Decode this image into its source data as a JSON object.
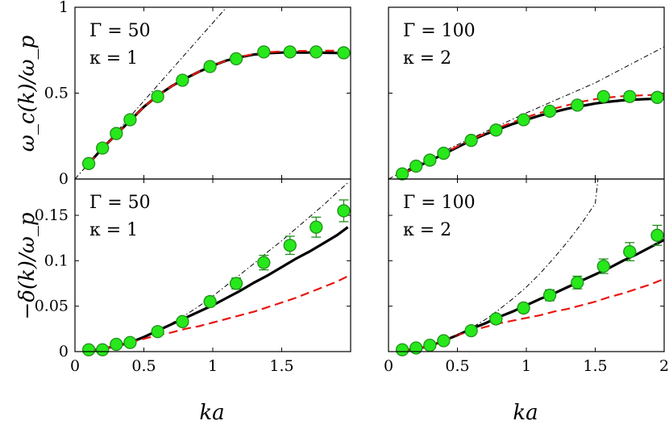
{
  "figure": {
    "ylabel_top": "ω_c(k)/ω_p",
    "ylabel_bottom": "−δ(k)/ω_p",
    "xlabel": "ka"
  },
  "colors": {
    "solid": "#000000",
    "dashed": "#e8160f",
    "dashdot": "#000000",
    "marker_fill": "#27e81b",
    "marker_edge": "#1f8f1a",
    "errorbar": "#1f8f1a"
  },
  "chart_data": [
    {
      "type": "line",
      "panel": "top-left",
      "annotations": [
        "Γ = 50",
        "κ = 1"
      ],
      "xlim": [
        0,
        2
      ],
      "ylim": [
        0,
        1
      ],
      "xticks": [],
      "yticks": [
        {
          "value": 0,
          "label": "0"
        },
        {
          "value": 0.5,
          "label": "0.5"
        },
        {
          "value": 1,
          "label": "1"
        }
      ],
      "series": [
        {
          "style": "solid",
          "x": [
            0.1,
            0.2,
            0.3,
            0.4,
            0.5,
            0.6,
            0.7,
            0.8,
            0.9,
            1.0,
            1.1,
            1.2,
            1.3,
            1.4,
            1.5,
            1.6,
            1.7,
            1.8,
            1.9,
            2.0
          ],
          "y": [
            0.09,
            0.18,
            0.26,
            0.34,
            0.42,
            0.485,
            0.54,
            0.585,
            0.625,
            0.66,
            0.69,
            0.71,
            0.725,
            0.733,
            0.736,
            0.737,
            0.736,
            0.735,
            0.734,
            0.734
          ]
        },
        {
          "style": "dashed",
          "x": [
            0.1,
            0.2,
            0.3,
            0.4,
            0.5,
            0.6,
            0.7,
            0.8,
            0.9,
            1.0,
            1.1,
            1.2,
            1.3,
            1.4,
            1.5,
            1.6,
            1.7,
            1.8,
            1.9,
            2.0
          ],
          "y": [
            0.09,
            0.18,
            0.26,
            0.34,
            0.42,
            0.485,
            0.54,
            0.585,
            0.625,
            0.66,
            0.69,
            0.712,
            0.728,
            0.738,
            0.743,
            0.745,
            0.746,
            0.747,
            0.747,
            0.747
          ]
        },
        {
          "style": "dashdot",
          "x": [
            0.0,
            1.1
          ],
          "y": [
            0.0,
            1.0
          ]
        },
        {
          "style": "markers",
          "x": [
            0.1,
            0.2,
            0.3,
            0.4,
            0.6,
            0.78,
            0.98,
            1.17,
            1.37,
            1.56,
            1.75,
            1.95
          ],
          "y": [
            0.09,
            0.18,
            0.265,
            0.345,
            0.48,
            0.575,
            0.655,
            0.7,
            0.74,
            0.74,
            0.74,
            0.735
          ],
          "err": [
            0,
            0,
            0,
            0,
            0,
            0,
            0,
            0,
            0,
            0,
            0,
            0
          ]
        }
      ]
    },
    {
      "type": "line",
      "panel": "top-right",
      "annotations": [
        "Γ = 100",
        "κ = 2"
      ],
      "xlim": [
        0,
        2
      ],
      "ylim": [
        0,
        1
      ],
      "xticks": [],
      "yticks": [],
      "series": [
        {
          "style": "solid",
          "x": [
            0.1,
            0.2,
            0.3,
            0.4,
            0.5,
            0.6,
            0.7,
            0.8,
            0.9,
            1.0,
            1.1,
            1.2,
            1.3,
            1.4,
            1.5,
            1.6,
            1.7,
            1.8,
            1.9,
            2.0
          ],
          "y": [
            0.03,
            0.07,
            0.105,
            0.145,
            0.185,
            0.225,
            0.26,
            0.29,
            0.32,
            0.345,
            0.37,
            0.39,
            0.41,
            0.425,
            0.44,
            0.45,
            0.458,
            0.463,
            0.466,
            0.467
          ]
        },
        {
          "style": "dashed",
          "x": [
            0.1,
            0.2,
            0.3,
            0.4,
            0.5,
            0.6,
            0.7,
            0.8,
            0.9,
            1.0,
            1.1,
            1.2,
            1.3,
            1.4,
            1.5,
            1.6,
            1.7,
            1.8,
            1.9,
            2.0
          ],
          "y": [
            0.03,
            0.07,
            0.11,
            0.15,
            0.19,
            0.23,
            0.265,
            0.3,
            0.33,
            0.36,
            0.385,
            0.41,
            0.43,
            0.45,
            0.465,
            0.475,
            0.482,
            0.486,
            0.489,
            0.49
          ]
        },
        {
          "style": "dashdot",
          "x": [
            0.0,
            0.5,
            1.0,
            1.5,
            2.0
          ],
          "y": [
            0.0,
            0.2,
            0.385,
            0.56,
            0.77
          ]
        },
        {
          "style": "markers",
          "x": [
            0.1,
            0.2,
            0.3,
            0.4,
            0.6,
            0.78,
            0.98,
            1.17,
            1.37,
            1.56,
            1.75,
            1.95
          ],
          "y": [
            0.03,
            0.075,
            0.11,
            0.15,
            0.225,
            0.285,
            0.345,
            0.395,
            0.43,
            0.48,
            0.48,
            0.475
          ],
          "err": [
            0,
            0,
            0,
            0,
            0,
            0,
            0,
            0,
            0,
            0,
            0,
            0
          ]
        }
      ]
    },
    {
      "type": "line",
      "panel": "bottom-left",
      "annotations": [
        "Γ = 50",
        "κ = 1"
      ],
      "xlim": [
        0,
        2
      ],
      "ylim": [
        0,
        0.19
      ],
      "xticks": [
        {
          "value": 0,
          "label": "0"
        },
        {
          "value": 0.5,
          "label": "0.5"
        },
        {
          "value": 1,
          "label": "1"
        },
        {
          "value": 1.5,
          "label": "1.5"
        }
      ],
      "yticks": [
        {
          "value": 0,
          "label": "0"
        },
        {
          "value": 0.05,
          "label": "0.05"
        },
        {
          "value": 0.1,
          "label": "0.1"
        },
        {
          "value": 0.15,
          "label": "0.15"
        }
      ],
      "series": [
        {
          "style": "solid",
          "x": [
            0.1,
            0.2,
            0.3,
            0.4,
            0.5,
            0.6,
            0.7,
            0.8,
            0.9,
            1.0,
            1.1,
            1.2,
            1.3,
            1.4,
            1.5,
            1.6,
            1.7,
            1.8,
            1.9,
            1.98
          ],
          "y": [
            0.001,
            0.003,
            0.006,
            0.01,
            0.016,
            0.023,
            0.03,
            0.037,
            0.044,
            0.051,
            0.059,
            0.067,
            0.076,
            0.084,
            0.093,
            0.102,
            0.11,
            0.119,
            0.128,
            0.137
          ]
        },
        {
          "style": "dashed",
          "x": [
            0.1,
            0.2,
            0.3,
            0.4,
            0.5,
            0.6,
            0.7,
            0.8,
            0.9,
            1.0,
            1.1,
            1.2,
            1.3,
            1.4,
            1.5,
            1.6,
            1.7,
            1.8,
            1.9,
            1.98
          ],
          "y": [
            0.001,
            0.003,
            0.006,
            0.01,
            0.014,
            0.018,
            0.021,
            0.025,
            0.028,
            0.032,
            0.036,
            0.04,
            0.044,
            0.049,
            0.054,
            0.059,
            0.065,
            0.071,
            0.077,
            0.083
          ]
        },
        {
          "style": "dashdot",
          "x": [
            0.1,
            0.2,
            0.3,
            0.4,
            0.5,
            0.6,
            0.7,
            0.8,
            0.9,
            1.0,
            1.1,
            1.2,
            1.3,
            1.4,
            1.5,
            1.6,
            1.7,
            1.8,
            1.9,
            1.98
          ],
          "y": [
            0.001,
            0.003,
            0.006,
            0.01,
            0.016,
            0.023,
            0.031,
            0.04,
            0.05,
            0.061,
            0.073,
            0.085,
            0.097,
            0.11,
            0.122,
            0.135,
            0.148,
            0.161,
            0.175,
            0.186
          ]
        },
        {
          "style": "markers",
          "x": [
            0.1,
            0.2,
            0.3,
            0.4,
            0.6,
            0.78,
            0.98,
            1.17,
            1.37,
            1.56,
            1.75,
            1.95
          ],
          "y": [
            0.002,
            0.002,
            0.008,
            0.01,
            0.022,
            0.033,
            0.055,
            0.075,
            0.098,
            0.117,
            0.137,
            0.155
          ],
          "err": [
            0.001,
            0.001,
            0.002,
            0.002,
            0.003,
            0.004,
            0.005,
            0.006,
            0.008,
            0.01,
            0.011,
            0.012
          ]
        }
      ]
    },
    {
      "type": "line",
      "panel": "bottom-right",
      "annotations": [
        "Γ = 100",
        "κ = 2"
      ],
      "xlim": [
        0,
        2
      ],
      "ylim": [
        0,
        0.19
      ],
      "xticks": [
        {
          "value": 0,
          "label": "0"
        },
        {
          "value": 0.5,
          "label": "0.5"
        },
        {
          "value": 1,
          "label": "1"
        },
        {
          "value": 1.5,
          "label": "1.5"
        },
        {
          "value": 2,
          "label": "2"
        }
      ],
      "yticks": [],
      "series": [
        {
          "style": "solid",
          "x": [
            0.1,
            0.2,
            0.3,
            0.4,
            0.5,
            0.6,
            0.7,
            0.8,
            0.9,
            1.0,
            1.1,
            1.2,
            1.3,
            1.4,
            1.5,
            1.6,
            1.7,
            1.8,
            1.9,
            2.0
          ],
          "y": [
            0.001,
            0.003,
            0.006,
            0.012,
            0.018,
            0.025,
            0.031,
            0.038,
            0.044,
            0.051,
            0.058,
            0.064,
            0.071,
            0.078,
            0.085,
            0.092,
            0.1,
            0.107,
            0.115,
            0.123
          ]
        },
        {
          "style": "dashed",
          "x": [
            0.1,
            0.2,
            0.3,
            0.4,
            0.5,
            0.6,
            0.7,
            0.8,
            0.9,
            1.0,
            1.1,
            1.2,
            1.3,
            1.4,
            1.5,
            1.6,
            1.7,
            1.8,
            1.9,
            2.0
          ],
          "y": [
            0.001,
            0.003,
            0.006,
            0.012,
            0.018,
            0.023,
            0.027,
            0.031,
            0.034,
            0.037,
            0.04,
            0.044,
            0.047,
            0.051,
            0.055,
            0.06,
            0.064,
            0.069,
            0.074,
            0.08
          ]
        },
        {
          "style": "dashdot",
          "x": [
            0.1,
            0.2,
            0.3,
            0.4,
            0.5,
            0.6,
            0.7,
            0.8,
            0.9,
            1.0,
            1.1,
            1.2,
            1.3,
            1.4,
            1.5,
            1.52
          ],
          "y": [
            0.001,
            0.003,
            0.006,
            0.012,
            0.018,
            0.026,
            0.035,
            0.046,
            0.058,
            0.071,
            0.086,
            0.103,
            0.121,
            0.141,
            0.163,
            0.19
          ]
        },
        {
          "style": "markers",
          "x": [
            0.1,
            0.2,
            0.3,
            0.4,
            0.6,
            0.78,
            0.98,
            1.17,
            1.37,
            1.56,
            1.75,
            1.95
          ],
          "y": [
            0.002,
            0.004,
            0.007,
            0.012,
            0.023,
            0.036,
            0.048,
            0.062,
            0.076,
            0.094,
            0.11,
            0.128
          ],
          "err": [
            0.001,
            0.001,
            0.002,
            0.002,
            0.003,
            0.004,
            0.005,
            0.006,
            0.007,
            0.008,
            0.01,
            0.011
          ]
        }
      ]
    }
  ]
}
